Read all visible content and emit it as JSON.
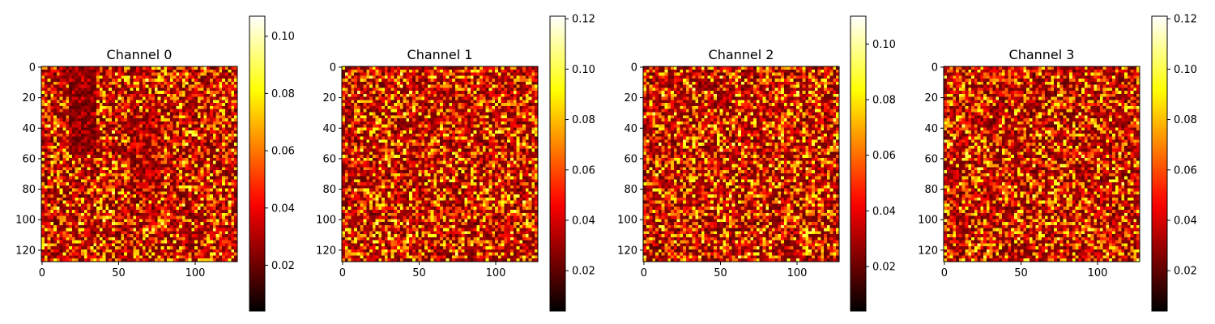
{
  "chart_data": [
    {
      "type": "heatmap",
      "title": "Channel 0",
      "grid_size": [
        128,
        128
      ],
      "xlim": [
        0,
        127
      ],
      "ylim": [
        127,
        0
      ],
      "x_ticks": [
        0,
        50,
        100
      ],
      "y_ticks": [
        0,
        20,
        40,
        60,
        80,
        100,
        120
      ],
      "colormap": "hot",
      "colorbar": {
        "range": [
          0.004,
          0.107
        ],
        "ticks": [
          "0.02",
          "0.04",
          "0.06",
          "0.08",
          "0.10"
        ]
      },
      "texture": "red-dominant noise with a darker vertical band near x≈20–35 (rows 0–55) and darker regions near x≈60–75, y≈30–80",
      "grid": false
    },
    {
      "type": "heatmap",
      "title": "Channel 1",
      "grid_size": [
        128,
        128
      ],
      "xlim": [
        0,
        127
      ],
      "ylim": [
        127,
        0
      ],
      "x_ticks": [
        0,
        50,
        100
      ],
      "y_ticks": [
        0,
        20,
        40,
        60,
        80,
        100,
        120
      ],
      "colormap": "hot",
      "colorbar": {
        "range": [
          0.004,
          0.121
        ],
        "ticks": [
          "0.02",
          "0.04",
          "0.06",
          "0.08",
          "0.10",
          "0.12"
        ]
      },
      "texture": "uniform random noise",
      "grid": false
    },
    {
      "type": "heatmap",
      "title": "Channel 2",
      "grid_size": [
        128,
        128
      ],
      "xlim": [
        0,
        127
      ],
      "ylim": [
        127,
        0
      ],
      "x_ticks": [
        0,
        50,
        100
      ],
      "y_ticks": [
        0,
        20,
        40,
        60,
        80,
        100,
        120
      ],
      "colormap": "hot",
      "colorbar": {
        "range": [
          0.004,
          0.11
        ],
        "ticks": [
          "0.02",
          "0.04",
          "0.06",
          "0.08",
          "0.10"
        ]
      },
      "texture": "uniform random noise",
      "grid": false
    },
    {
      "type": "heatmap",
      "title": "Channel 3",
      "grid_size": [
        128,
        128
      ],
      "xlim": [
        0,
        127
      ],
      "ylim": [
        127,
        0
      ],
      "x_ticks": [
        0,
        50,
        100
      ],
      "y_ticks": [
        0,
        20,
        40,
        60,
        80,
        100,
        120
      ],
      "colormap": "hot",
      "colorbar": {
        "range": [
          0.004,
          0.121
        ],
        "ticks": [
          "0.02",
          "0.04",
          "0.06",
          "0.08",
          "0.10",
          "0.12"
        ]
      },
      "texture": "uniform random noise",
      "grid": false
    }
  ]
}
